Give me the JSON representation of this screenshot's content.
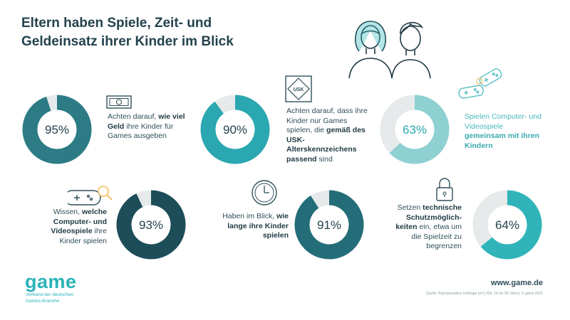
{
  "title": "Eltern haben Spiele, Zeit- und\nGeldeinsatz ihrer Kinder im Blick",
  "chart_data": {
    "type": "donut",
    "items": [
      {
        "value": 95,
        "label": "95%",
        "text_pre": "Achten darauf,",
        "text_bold": "wie viel Geld",
        "text_post": "ihre Kinder für Games ausgeben",
        "icon": "money-bill-icon",
        "color": "#2c7b85",
        "text_color": "dark"
      },
      {
        "value": 90,
        "label": "90%",
        "text_pre": "Achten darauf, dass ihre Kinder nur Games spielen, die",
        "text_bold": "gemäß des USK-Alterskennzeichens passend",
        "text_post": "sind",
        "icon": "usk-label-icon",
        "icon_text": "USK",
        "color": "#2aa7b0",
        "text_color": "dark"
      },
      {
        "value": 63,
        "label": "63%",
        "text_pre": "Spielen Computer- und Videospiele",
        "text_bold": "gemeinsam mit ihren Kindern",
        "text_post": "",
        "icon": "two-gamepads-icon",
        "color": "#8fd0d2",
        "text_color": "light"
      },
      {
        "value": 93,
        "label": "93%",
        "text_pre": "Wissen,",
        "text_bold": "welche Computer- und Videospiele",
        "text_post": "ihre Kinder spielen",
        "icon": "gamepad-magnifier-icon",
        "color": "#1d4d59",
        "text_color": "dark"
      },
      {
        "value": 91,
        "label": "91%",
        "text_pre": "Haben im Blick,",
        "text_bold": "wie lange ihre Kinder spielen",
        "text_post": "",
        "icon": "clock-icon",
        "color": "#236d78",
        "text_color": "dark"
      },
      {
        "value": 64,
        "label": "64%",
        "text_pre": "Setzen",
        "text_bold": "technische Schutzmöglich-keiten",
        "text_post": "ein, etwa um die Spielzeit zu begrenzen",
        "icon": "padlock-icon",
        "color": "#31b4b9",
        "text_color": "dark"
      }
    ],
    "remainder_color": "#e6eaeb"
  },
  "footer": {
    "brand": "game",
    "brand_sub": "Verband der deutschen\nGames-Branche",
    "website": "www.game.de",
    "source": "Quelle: Repräsentative Umfrage (n=1.000, 16 bis 69 Jahre), © game 2021"
  },
  "decor": {
    "header_icon": "parents-icon"
  }
}
